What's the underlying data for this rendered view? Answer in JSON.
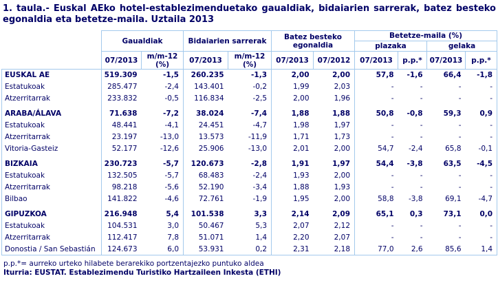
{
  "title": {
    "line1": "1. taula.- Euskal AEko hotel-establezimenduetako gaualdiak, bidaiarien sarrerak, batez besteko",
    "line2": "egonaldia eta betetze-maila. Uztaila 2013"
  },
  "table": {
    "header": {
      "group_gaualdiak": "Gaualdiak",
      "group_bidaiarien": "Bidaiarien sarrerak",
      "group_egonaldia": "Batez besteko egonaldia",
      "group_betetze": "Betetze-maila (%)",
      "sub_plazaka": "plazaka",
      "sub_gelaka": "gelaka",
      "cols": [
        "07/2013",
        "m/m-12 (%)",
        "07/2013",
        "m/m-12 (%)",
        "07/2013",
        "07/2012",
        "07/2013",
        "p.p.*",
        "07/2013",
        "p.p.*"
      ]
    },
    "rows": [
      {
        "label": "EUSKAL AE",
        "bold": true,
        "gap": false,
        "values": [
          "519.309",
          "-1,5",
          "260.235",
          "-1,3",
          "2,00",
          "2,00",
          "57,8",
          "-1,6",
          "66,4",
          "-1,8"
        ]
      },
      {
        "label": "Estatukoak",
        "bold": false,
        "gap": false,
        "values": [
          "285.477",
          "-2,4",
          "143.401",
          "-0,2",
          "1,99",
          "2,03",
          "-",
          "-",
          "-",
          "-"
        ]
      },
      {
        "label": "Atzerritarrak",
        "bold": false,
        "gap": false,
        "values": [
          "233.832",
          "-0,5",
          "116.834",
          "-2,5",
          "2,00",
          "1,96",
          "-",
          "-",
          "-",
          "-"
        ]
      },
      {
        "label": "ARABA/ÁLAVA",
        "bold": true,
        "gap": true,
        "values": [
          "71.638",
          "-7,2",
          "38.024",
          "-7,4",
          "1,88",
          "1,88",
          "50,8",
          "-0,8",
          "59,3",
          "0,9"
        ]
      },
      {
        "label": "Estatukoak",
        "bold": false,
        "gap": false,
        "values": [
          "48.441",
          "-4,1",
          "24.451",
          "-4,7",
          "1,98",
          "1,97",
          "-",
          "-",
          "-",
          "-"
        ]
      },
      {
        "label": "Atzerritarrak",
        "bold": false,
        "gap": false,
        "values": [
          "23.197",
          "-13,0",
          "13.573",
          "-11,9",
          "1,71",
          "1,73",
          "-",
          "-",
          "-",
          "-"
        ]
      },
      {
        "label": "Vitoria-Gasteiz",
        "bold": false,
        "gap": false,
        "values": [
          "52.177",
          "-12,6",
          "25.906",
          "-13,0",
          "2,01",
          "2,00",
          "54,7",
          "-2,4",
          "65,8",
          "-0,1"
        ]
      },
      {
        "label": "BIZKAIA",
        "bold": true,
        "gap": true,
        "values": [
          "230.723",
          "-5,7",
          "120.673",
          "-2,8",
          "1,91",
          "1,97",
          "54,4",
          "-3,8",
          "63,5",
          "-4,5"
        ]
      },
      {
        "label": "Estatukoak",
        "bold": false,
        "gap": false,
        "values": [
          "132.505",
          "-5,7",
          "68.483",
          "-2,4",
          "1,93",
          "2,00",
          "-",
          "-",
          "-",
          "-"
        ]
      },
      {
        "label": "Atzerritarrak",
        "bold": false,
        "gap": false,
        "values": [
          "98.218",
          "-5,6",
          "52.190",
          "-3,4",
          "1,88",
          "1,93",
          "-",
          "-",
          "-",
          "-"
        ]
      },
      {
        "label": "Bilbao",
        "bold": false,
        "gap": false,
        "values": [
          "141.822",
          "-4,6",
          "72.761",
          "-1,9",
          "1,95",
          "2,00",
          "58,8",
          "-3,8",
          "69,1",
          "-4,7"
        ]
      },
      {
        "label": "GIPUZKOA",
        "bold": true,
        "gap": true,
        "values": [
          "216.948",
          "5,4",
          "101.538",
          "3,3",
          "2,14",
          "2,09",
          "65,1",
          "0,3",
          "73,1",
          "0,0"
        ]
      },
      {
        "label": "Estatukoak",
        "bold": false,
        "gap": false,
        "values": [
          "104.531",
          "3,0",
          "50.467",
          "5,3",
          "2,07",
          "2,12",
          "-",
          "-",
          "-",
          "-"
        ]
      },
      {
        "label": "Atzerritarrak",
        "bold": false,
        "gap": false,
        "values": [
          "112.417",
          "7,8",
          "51.071",
          "1,4",
          "2,20",
          "2,07",
          "-",
          "-",
          "-",
          "-"
        ]
      },
      {
        "label": "Donostia / San Sebastián",
        "bold": false,
        "gap": false,
        "values": [
          "124.673",
          "6,0",
          "53.931",
          "0,2",
          "2,31",
          "2,18",
          "77,0",
          "2,6",
          "85,6",
          "1,4"
        ]
      }
    ]
  },
  "footnotes": {
    "pp_note": "p.p.*= aurreko urteko hilabete berarekiko portzentajezko puntuko aldea",
    "source": "Iturria: EUSTAT. Establezimendu Turistiko Hartzaileen Inkesta (ETHI)"
  },
  "colors": {
    "text_navy": "#000066",
    "border_blue": "#A3C9EC"
  }
}
